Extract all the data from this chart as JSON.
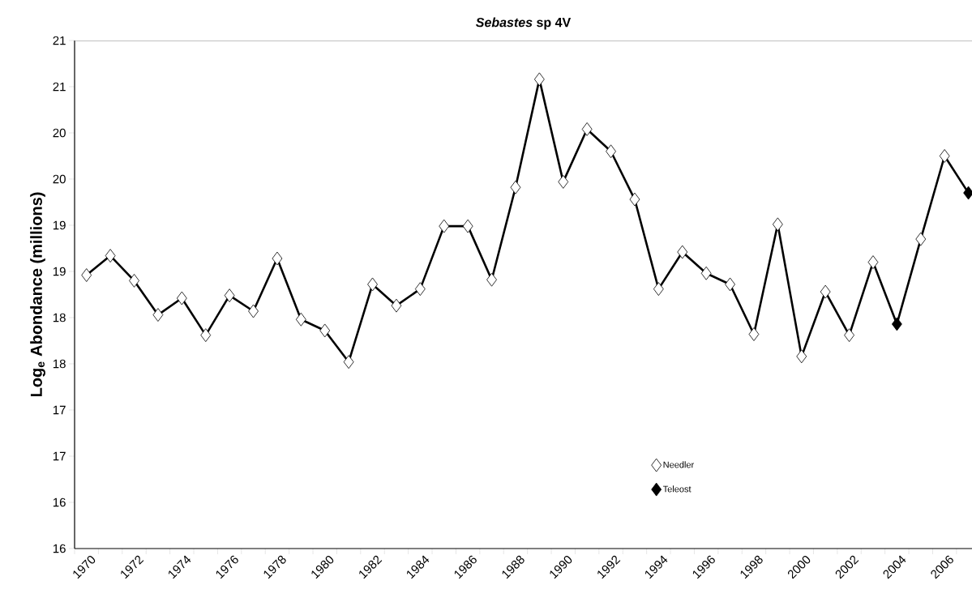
{
  "chart_data": {
    "type": "line",
    "title": "*Sebastes* sp 4V",
    "ylabel": "Log$_{e}$ Abondance (millions)",
    "categories": [
      "1970",
      null,
      "1972",
      null,
      "1974",
      null,
      "1976",
      null,
      "1978",
      null,
      "1980",
      null,
      "1982",
      null,
      "1984",
      null,
      "1986",
      null,
      "1988",
      null,
      "1990",
      null,
      "1992",
      null,
      "1994",
      null,
      "1996",
      null,
      "1998",
      null,
      "2000",
      null,
      "2002",
      null,
      "2004",
      null,
      "2006",
      null
    ],
    "series": [
      {
        "color": "#000000",
        "marker": "none",
        "line_style": "solid",
        "values": [
          18.96,
          19.17,
          18.9,
          18.53,
          18.71,
          18.31,
          18.74,
          18.57,
          19.14,
          18.48,
          18.36,
          18.02,
          18.86,
          18.63,
          18.81,
          19.49,
          19.49,
          18.91,
          19.91,
          21.08,
          19.97,
          20.54,
          20.3,
          19.78,
          18.81,
          19.21,
          18.98,
          18.86,
          18.32,
          19.51,
          18.08,
          18.78,
          18.31,
          19.1,
          18.43,
          19.35,
          20.25,
          19.85
        ]
      },
      {
        "type": "scatter",
        "name": "Needler",
        "color": "#ffffff",
        "marker": "diamond",
        "values": [
          18.96,
          19.17,
          18.9,
          18.53,
          18.71,
          18.31,
          18.74,
          18.57,
          19.14,
          18.48,
          18.36,
          18.02,
          18.86,
          18.63,
          18.81,
          19.49,
          19.49,
          18.91,
          19.91,
          21.08,
          19.97,
          20.54,
          20.3,
          19.78,
          18.81,
          19.21,
          18.98,
          18.86,
          18.32,
          19.51,
          18.08,
          18.78,
          18.31,
          19.1,
          null,
          19.35,
          20.25,
          null
        ]
      },
      {
        "type": "scatter",
        "name": "Teleost",
        "color": "#000000",
        "marker": "diamond",
        "values": [
          null,
          null,
          null,
          null,
          null,
          null,
          null,
          null,
          null,
          null,
          null,
          null,
          null,
          null,
          null,
          null,
          null,
          null,
          null,
          null,
          null,
          null,
          null,
          null,
          null,
          null,
          null,
          null,
          null,
          null,
          null,
          null,
          null,
          null,
          18.43,
          null,
          null,
          19.85
        ]
      }
    ],
    "ylim": [
      16,
      21.5
    ],
    "yticks": [
      {
        "value": 16,
        "label": "16"
      },
      {
        "value": 16.5,
        "label": "16"
      },
      {
        "value": 17,
        "label": "17"
      },
      {
        "value": 17.5,
        "label": "17"
      },
      {
        "value": 18,
        "label": "18"
      },
      {
        "value": 18.5,
        "label": "18"
      },
      {
        "value": 19,
        "label": "19"
      },
      {
        "value": 19.5,
        "label": "19"
      },
      {
        "value": 20,
        "label": "20"
      },
      {
        "value": 20.5,
        "label": "20"
      },
      {
        "value": 21,
        "label": "21"
      },
      {
        "value": 21.5,
        "label": "21"
      }
    ],
    "grid": false,
    "legend": "bottom right"
  }
}
